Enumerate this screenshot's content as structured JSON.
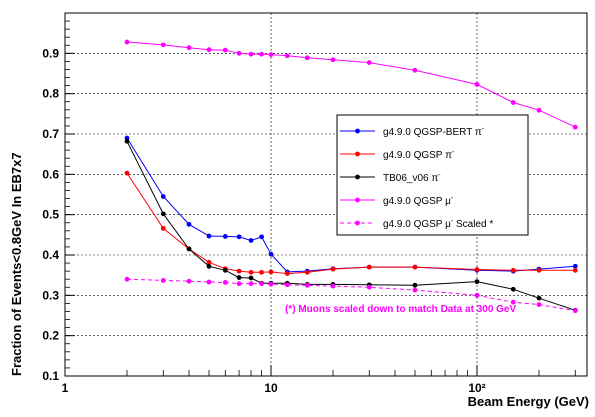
{
  "chart_data": {
    "type": "line",
    "title": "",
    "xlabel": "Beam Energy (GeV)",
    "ylabel": "Fraction of Events<0.8GeV In EB7x7",
    "x_scale": "log",
    "xlim": [
      1,
      330
    ],
    "ylim": [
      0.1,
      1.0
    ],
    "grid": true,
    "legend_position": "right",
    "x_tick_labels": [
      "1",
      "10",
      "10²"
    ],
    "y_tick_labels": [
      "0.1",
      "0.2",
      "0.3",
      "0.4",
      "0.5",
      "0.6",
      "0.7",
      "0.8",
      "0.9"
    ],
    "annotation": "(*) Muons scaled down to match Data at 300 GeV",
    "series": [
      {
        "name": "g4.9.0 QGSP-BERT π",
        "legend_sup": "-",
        "color": "#0000ff",
        "dashed": false,
        "x": [
          2,
          3,
          4,
          5,
          6,
          7,
          8,
          9,
          10,
          12,
          15,
          20,
          30,
          50,
          100,
          150,
          200,
          300
        ],
        "y": [
          0.69,
          0.545,
          0.476,
          0.447,
          0.446,
          0.445,
          0.436,
          0.445,
          0.402,
          0.358,
          0.36,
          0.366,
          0.37,
          0.37,
          0.362,
          0.36,
          0.365,
          0.372
        ]
      },
      {
        "name": "g4.9.0 QGSP π",
        "legend_sup": "-",
        "color": "#ff0000",
        "dashed": false,
        "x": [
          2,
          3,
          4,
          5,
          6,
          7,
          8,
          9,
          10,
          12,
          15,
          20,
          30,
          50,
          100,
          150,
          200,
          300
        ],
        "y": [
          0.603,
          0.466,
          0.415,
          0.382,
          0.366,
          0.36,
          0.357,
          0.357,
          0.358,
          0.354,
          0.357,
          0.365,
          0.37,
          0.37,
          0.364,
          0.362,
          0.362,
          0.362
        ]
      },
      {
        "name": "TB06_v06 π",
        "legend_sup": "-",
        "color": "#000000",
        "dashed": false,
        "x": [
          2,
          3,
          4,
          5,
          6,
          7,
          8,
          9,
          10,
          12,
          15,
          20,
          30,
          50,
          100,
          150,
          200,
          300
        ],
        "y": [
          0.682,
          0.502,
          0.415,
          0.372,
          0.362,
          0.344,
          0.343,
          0.33,
          0.33,
          0.33,
          0.327,
          0.327,
          0.326,
          0.325,
          0.334,
          0.315,
          0.293,
          0.263
        ]
      },
      {
        "name": "g4.9.0 QGSP μ",
        "legend_sup": "-",
        "color": "#ff00ff",
        "dashed": false,
        "x": [
          2,
          3,
          4,
          5,
          6,
          7,
          8,
          9,
          10,
          12,
          15,
          20,
          30,
          50,
          100,
          150,
          200,
          300
        ],
        "y": [
          0.928,
          0.921,
          0.914,
          0.909,
          0.908,
          0.9,
          0.898,
          0.898,
          0.897,
          0.894,
          0.889,
          0.884,
          0.877,
          0.858,
          0.823,
          0.778,
          0.759,
          0.717
        ]
      },
      {
        "name": "g4.9.0 QGSP μ",
        "legend_sup": "-",
        "legend_suffix": "Scaled *",
        "color": "#ff00ff",
        "dashed": true,
        "x": [
          2,
          3,
          4,
          5,
          6,
          7,
          8,
          9,
          10,
          12,
          15,
          20,
          30,
          50,
          100,
          150,
          200,
          300
        ],
        "y": [
          0.34,
          0.337,
          0.335,
          0.333,
          0.332,
          0.329,
          0.329,
          0.329,
          0.328,
          0.326,
          0.325,
          0.323,
          0.32,
          0.313,
          0.3,
          0.283,
          0.277,
          0.262
        ]
      }
    ]
  }
}
